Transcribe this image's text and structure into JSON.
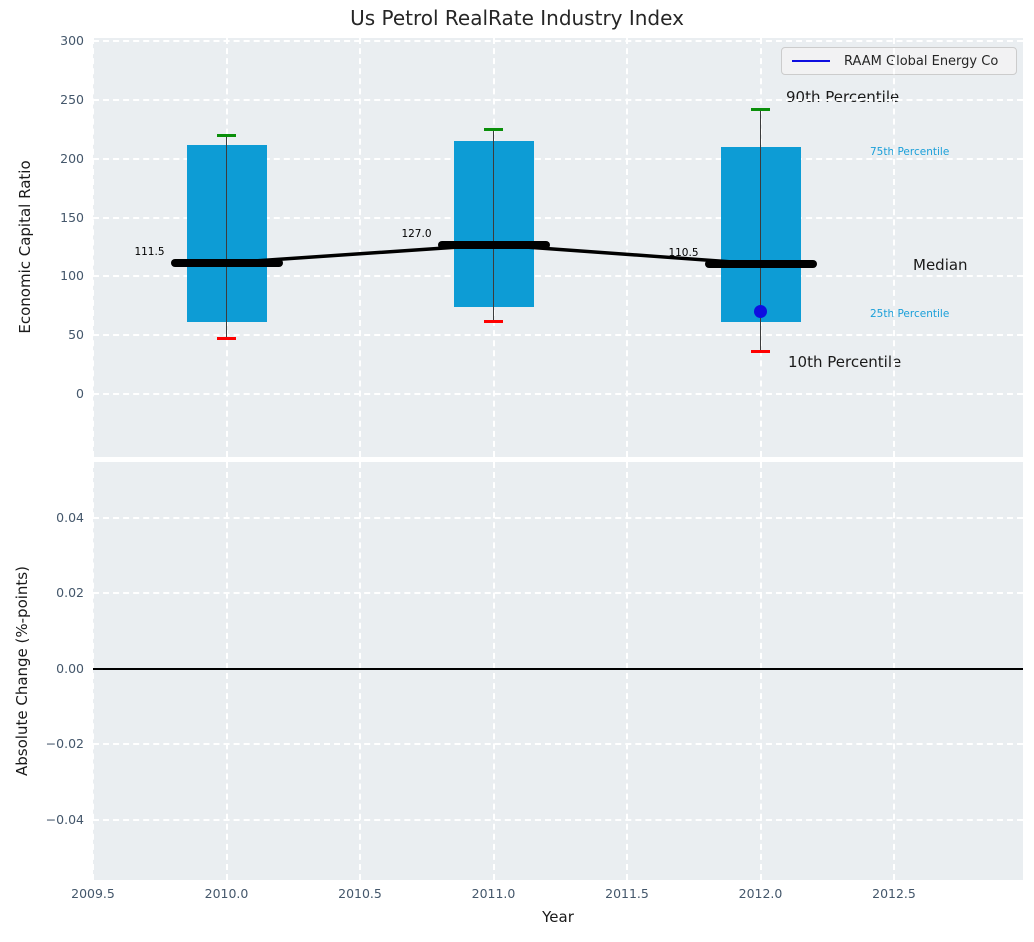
{
  "title": "Us Petrol RealRate Industry Index",
  "legend": {
    "label": "RAAM Global Energy Co",
    "line_color": "#0e0ee0"
  },
  "annotations": {
    "p90": {
      "text": "90th Percentile",
      "color": "#1a1a1a"
    },
    "p75": {
      "text": "75th Percentile",
      "color": "#1a9fd9"
    },
    "median": {
      "text": "Median",
      "color": "#1a1a1a"
    },
    "p25": {
      "text": "25th Percentile",
      "color": "#1a9fd9"
    },
    "p10": {
      "text": "10th Percentile",
      "color": "#1a1a1a"
    }
  },
  "chart_data": [
    {
      "type": "box",
      "title": "Us Petrol RealRate Industry Index",
      "xlabel": "Year",
      "ylabel": "Economic Capital Ratio",
      "legend": [
        "RAAM Global Energy Co"
      ],
      "legend_position": "upper right",
      "grid": true,
      "ylim": [
        -53,
        303
      ],
      "yticks": [
        300,
        250,
        200,
        150,
        100,
        50,
        0
      ],
      "ytick_labels": [
        "300",
        "250",
        "200",
        "150",
        "100",
        "50",
        "0"
      ],
      "xlim": [
        2009.5,
        2012.985
      ],
      "xticks": [
        2009.5,
        2010.0,
        2010.5,
        2011.0,
        2011.5,
        2012.0,
        2012.5
      ],
      "xtick_labels": [
        "2009.5",
        "2010.0",
        "2010.5",
        "2011.0",
        "2011.5",
        "2012.0",
        "2012.5"
      ],
      "years": [
        2010,
        2011,
        2012
      ],
      "p10": [
        47,
        62,
        36
      ],
      "p25": [
        61,
        74,
        61
      ],
      "median": [
        111.5,
        127.0,
        110.5
      ],
      "p75": [
        212,
        215,
        210
      ],
      "p90": [
        220,
        225,
        242
      ],
      "median_labels": [
        "111.5",
        "127.0",
        "110.5"
      ],
      "company_series": {
        "name": "RAAM Global Energy Co",
        "points": [
          {
            "x": 2012,
            "y": 70
          }
        ],
        "color": "#0e0ee0"
      },
      "colors": {
        "box": "#0d9cd5",
        "p90_cap": "#0a8f0a",
        "p10_cap": "#fe0000",
        "median_line": "#000000",
        "whisker": "#3c3c3c",
        "axes_bg": "#eaeef1"
      }
    },
    {
      "type": "line",
      "xlabel": "Year",
      "ylabel": "Absolute Change (%-points)",
      "ylim": [
        -0.0547,
        0.0547
      ],
      "yticks": [
        0.04,
        0.02,
        0.0,
        -0.02,
        -0.04
      ],
      "ytick_labels": [
        "0.04",
        "0.02",
        "0.00",
        "−0.02",
        "−0.04"
      ],
      "xticks": [
        2009.5,
        2010.0,
        2010.5,
        2011.0,
        2011.5,
        2012.0,
        2012.5
      ],
      "zero_line_value": 0.0,
      "zero_line_color": "#000000"
    }
  ]
}
